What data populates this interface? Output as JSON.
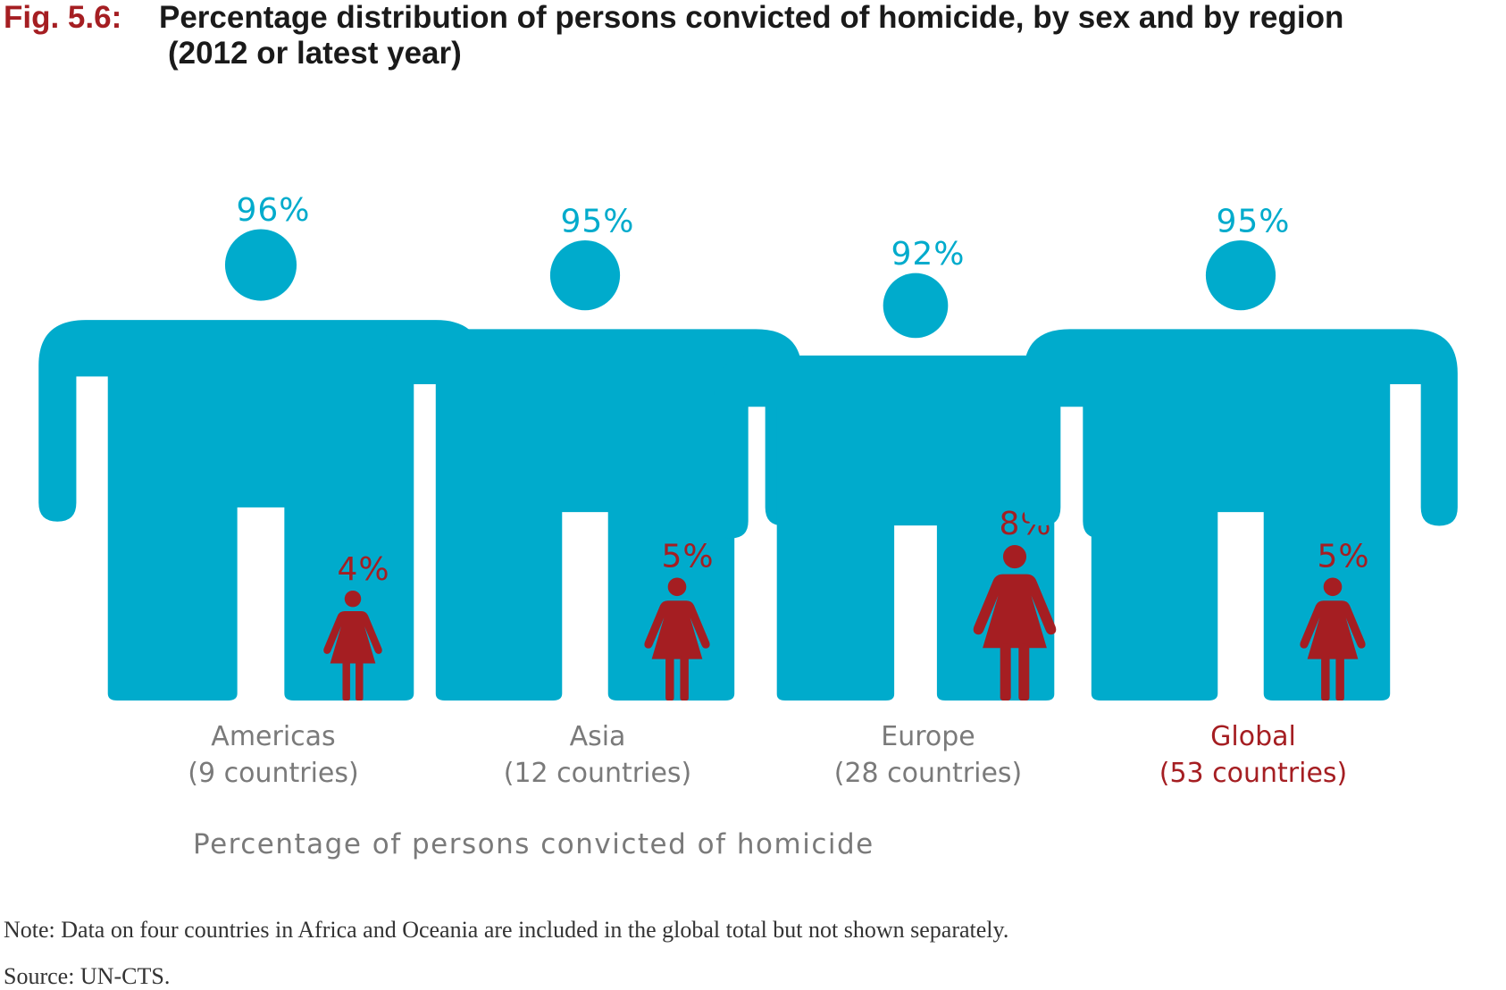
{
  "figure": {
    "number": "Fig. 5.6:",
    "title_line1": "Percentage distribution of persons convicted of homicide, by sex and by region",
    "title_line2": "(2012 or latest year)"
  },
  "chart_data": {
    "type": "pictograph",
    "title": "Percentage distribution of persons convicted of homicide, by sex and by region (2012 or latest year)",
    "xlabel": "Percentage of persons convicted of homicide",
    "categories": [
      {
        "label": "Americas",
        "sublabel": "(9 countries)"
      },
      {
        "label": "Asia",
        "sublabel": "(12 countries)"
      },
      {
        "label": "Europe",
        "sublabel": "(28 countries)"
      },
      {
        "label": "Global",
        "sublabel": "(53 countries)"
      }
    ],
    "series": [
      {
        "values": [
          96,
          95,
          92,
          95
        ],
        "labels": [
          "96%",
          "95%",
          "92%",
          "95%"
        ],
        "color": "#00abcc"
      },
      {
        "values": [
          4,
          5,
          8,
          5
        ],
        "labels": [
          "4%",
          "5%",
          "8%",
          "5%"
        ],
        "color": "#a51e22"
      }
    ],
    "label_colors": {
      "regional": "#7a7a7a",
      "global": "#a51e22"
    }
  },
  "footer": {
    "note": "Note: Data on four countries in Africa and Oceania are included in the global total but not shown separately.",
    "source": "Source: UN-CTS."
  }
}
